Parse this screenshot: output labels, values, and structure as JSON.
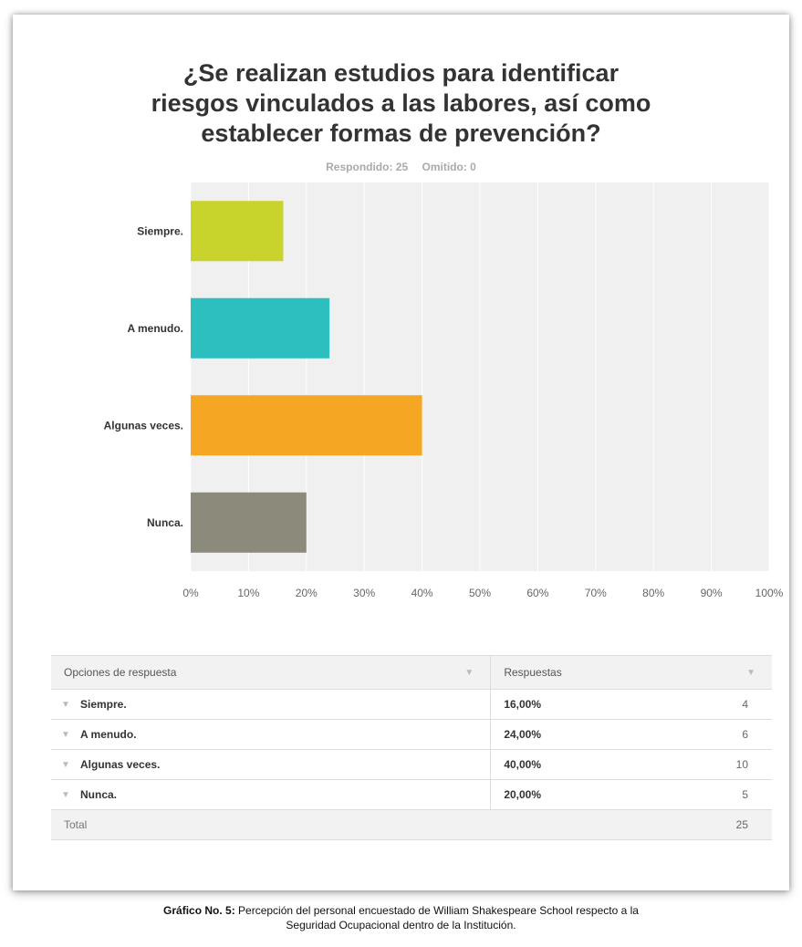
{
  "title": "¿Se realizan estudios para identificar\nriesgos vinculados a las labores, así como\nestablecer formas de prevención?",
  "meta": {
    "answered": "Respondido: 25",
    "skipped": "Omitido: 0"
  },
  "chart_data": {
    "type": "bar",
    "orientation": "horizontal",
    "categories": [
      "Siempre.",
      "A menudo.",
      "Algunas veces.",
      "Nunca."
    ],
    "values": [
      16,
      24,
      40,
      20
    ],
    "colors": [
      "#c8d42b",
      "#2dbfc0",
      "#f5a623",
      "#8c8a7a"
    ],
    "xlim": [
      0,
      100
    ],
    "xticks": [
      "0%",
      "10%",
      "20%",
      "30%",
      "40%",
      "50%",
      "60%",
      "70%",
      "80%",
      "90%",
      "100%"
    ],
    "grid": true
  },
  "table": {
    "header_options": "Opciones de respuesta",
    "header_responses": "Respuestas",
    "rows": [
      {
        "label": "Siempre.",
        "pct": "16,00%",
        "count": "4"
      },
      {
        "label": "A menudo.",
        "pct": "24,00%",
        "count": "6"
      },
      {
        "label": "Algunas veces.",
        "pct": "40,00%",
        "count": "10"
      },
      {
        "label": "Nunca.",
        "pct": "20,00%",
        "count": "5"
      }
    ],
    "total_label": "Total",
    "total_value": "25"
  },
  "caption": {
    "bold": "Gráfico No. 5:",
    "line1": " Percepción del personal encuestado de William Shakespeare School respecto a la",
    "line2": "Seguridad Ocupacional dentro de la Institución."
  }
}
